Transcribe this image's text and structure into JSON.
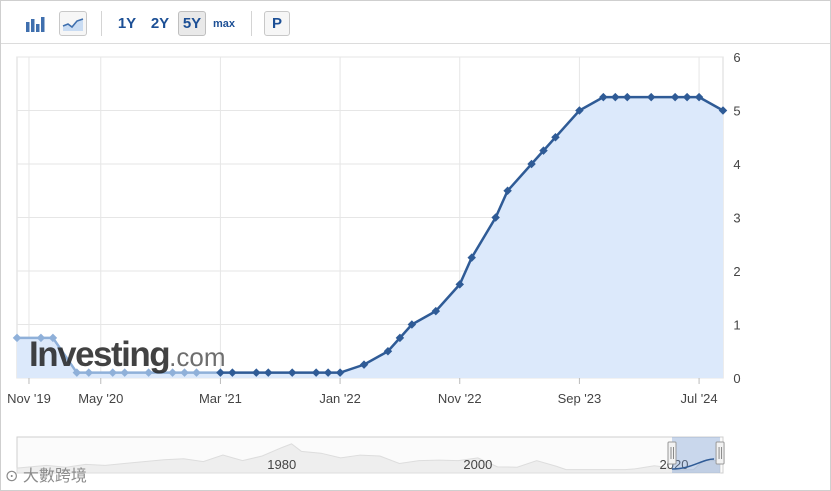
{
  "toolbar": {
    "bar_chart_icon": "bar-chart-icon",
    "area_chart_icon": "area-chart-icon",
    "range_buttons": [
      "1Y",
      "2Y",
      "5Y",
      "max"
    ],
    "active_range": "5Y",
    "p_button": "P"
  },
  "logo": {
    "main": "Investing",
    "suffix": ".com"
  },
  "watermark": {
    "text": "大數跨境"
  },
  "colors": {
    "line": "#2f5b96",
    "area": "#dce9fb",
    "faded": "#8fb0d9",
    "grid": "#e6e6e6"
  },
  "chart_data": {
    "type": "area",
    "y_ticks": [
      "0",
      "1",
      "2",
      "3",
      "4",
      "5",
      "6"
    ],
    "ylim": [
      0,
      6
    ],
    "x_tick_labels": [
      "Nov '19",
      "May '20",
      "Mar '21",
      "Jan '22",
      "Nov '22",
      "Sep '23",
      "Jul '24"
    ],
    "x_tick_dates": [
      "2019-11",
      "2020-05",
      "2021-03",
      "2022-01",
      "2022-11",
      "2023-09",
      "2024-07"
    ],
    "grid": true,
    "series": [
      {
        "x": [
          "2019-10",
          "2019-12",
          "2020-01",
          "2020-03",
          "2020-04",
          "2020-06",
          "2020-07",
          "2020-09",
          "2020-11",
          "2020-12",
          "2021-01",
          "2021-03",
          "2021-04",
          "2021-06",
          "2021-07",
          "2021-09",
          "2021-11",
          "2021-12",
          "2022-01",
          "2022-03",
          "2022-05",
          "2022-06",
          "2022-07",
          "2022-09",
          "2022-11",
          "2022-12",
          "2023-02",
          "2023-03",
          "2023-05",
          "2023-06",
          "2023-07",
          "2023-09",
          "2023-11",
          "2023-12",
          "2024-01",
          "2024-03",
          "2024-05",
          "2024-06",
          "2024-07",
          "2024-09"
        ],
        "values": [
          0.75,
          0.75,
          0.75,
          0.1,
          0.1,
          0.1,
          0.1,
          0.1,
          0.1,
          0.1,
          0.1,
          0.1,
          0.1,
          0.1,
          0.1,
          0.1,
          0.1,
          0.1,
          0.1,
          0.25,
          0.5,
          0.75,
          1.0,
          1.25,
          1.75,
          2.25,
          3.0,
          3.5,
          4.0,
          4.25,
          4.5,
          5.0,
          5.25,
          5.25,
          5.25,
          5.25,
          5.25,
          5.25,
          5.25,
          5.0
        ]
      }
    ],
    "navigator": {
      "labels": [
        "1980",
        "2000",
        "2020"
      ],
      "label_years": [
        1980,
        2000,
        2020
      ],
      "selection_years": [
        2019.8,
        2024.7
      ]
    }
  }
}
